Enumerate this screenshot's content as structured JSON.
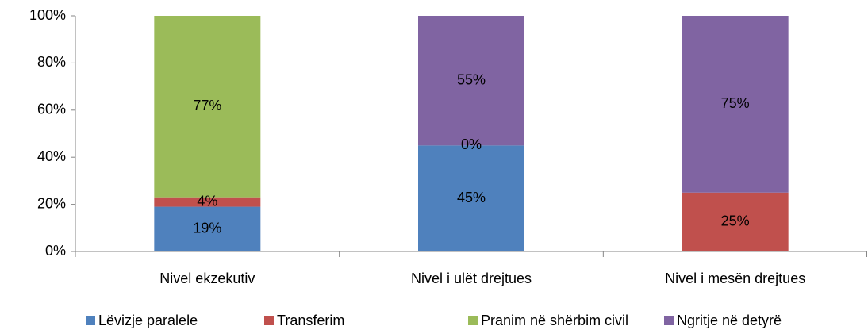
{
  "chart_data": {
    "type": "stacked_bar",
    "categories": [
      "Nivel ekzekutiv",
      "Nivel i ulët drejtues",
      "Nivel i mesën drejtues"
    ],
    "series": [
      {
        "name": "Lëvizje paralele",
        "color": "#4f81bd",
        "values": [
          19,
          45,
          0
        ],
        "value_labels": [
          "19%",
          "45%",
          null
        ]
      },
      {
        "name": "Transferim",
        "color": "#c0504d",
        "values": [
          4,
          0,
          25
        ],
        "value_labels": [
          "4%",
          "0%",
          "25%"
        ]
      },
      {
        "name": "Pranim në shërbim civil",
        "color": "#9bbb59",
        "values": [
          77,
          0,
          0
        ],
        "value_labels": [
          "77%",
          null,
          null
        ]
      },
      {
        "name": "Ngritje në detyrë",
        "color": "#8064a2",
        "values": [
          0,
          55,
          75
        ],
        "value_labels": [
          null,
          "55%",
          "75%"
        ]
      }
    ],
    "ylim": [
      0,
      100
    ],
    "yticks": [
      {
        "value": 0,
        "label": "0%"
      },
      {
        "value": 20,
        "label": "20%"
      },
      {
        "value": 40,
        "label": "40%"
      },
      {
        "value": 60,
        "label": "60%"
      },
      {
        "value": 80,
        "label": "80%"
      },
      {
        "value": 100,
        "label": "100%"
      }
    ],
    "legend": "bottom"
  }
}
